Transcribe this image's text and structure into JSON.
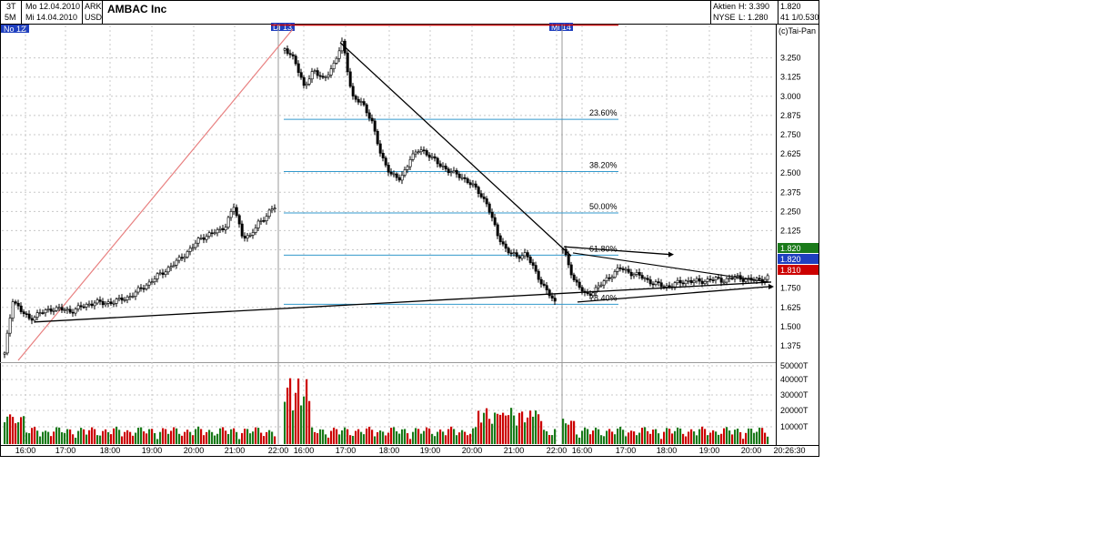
{
  "header": {
    "timeframe_top": "3T",
    "timeframe_bottom": "5M",
    "date_from": "Mo 12.04.2010",
    "date_to": "Mi 14.04.2010",
    "exchange": "ARK",
    "currency": "USD",
    "instrument": "AMBAC Inc",
    "type_label": "Aktien",
    "venue": "NYSE",
    "high": "H: 3.390",
    "low": "L: 1.280",
    "last": "1.820",
    "ratio": "41 1/0.530"
  },
  "tags": {
    "left_marker": "No 12",
    "spike_marker": "Di 13",
    "mid_marker": "Mi 14",
    "fan_label": "(c)Tai-Pan"
  },
  "colors": {
    "up": "#1a7a1a",
    "down": "#cc0000",
    "candle": "#000000",
    "fib_line": "#3399cc",
    "diag_line": "#e88080",
    "blue_tag": "#1f3fbf",
    "grid": "#c8c8c8"
  },
  "chart_data": [
    {
      "type": "candlestick",
      "title": "AMBAC Inc",
      "ylim": [
        1.28,
        3.39
      ],
      "y_ticks": [
        "3.250",
        "3.125",
        "3.000",
        "2.875",
        "2.750",
        "2.625",
        "2.500",
        "2.375",
        "2.250",
        "2.125",
        "2.000",
        "1.875",
        "1.750",
        "1.625",
        "1.500",
        "1.375"
      ],
      "x_ticks": [
        "16:00",
        "17:00",
        "18:00",
        "19:00",
        "20:00",
        "21:00",
        "22:00",
        "16:00",
        "17:00",
        "18:00",
        "19:00",
        "20:00",
        "21:00",
        "22:00",
        "16:00",
        "17:00",
        "18:00",
        "19:00",
        "20:00"
      ],
      "last_time_label": "20:26:30",
      "price_tags": [
        {
          "value": "1.820",
          "color": "#1a7a1a"
        },
        {
          "value": "1.820",
          "color": "#1f3fbf"
        },
        {
          "value": "1.810",
          "color": "#cc0000"
        }
      ],
      "fibonacci": [
        {
          "label": "23.60%",
          "value": 2.85
        },
        {
          "label": "38.20%",
          "value": 2.51
        },
        {
          "label": "50.00%",
          "value": 2.24
        },
        {
          "label": "61.80%",
          "value": 1.965
        },
        {
          "label": "78.40%",
          "value": 1.645
        }
      ],
      "session_prices": [
        [
          1.32,
          1.68,
          1.6,
          1.55,
          1.58,
          1.6,
          1.62,
          1.61,
          1.6,
          1.62,
          1.64,
          1.66,
          1.65,
          1.66,
          1.67,
          1.69,
          1.72,
          1.76,
          1.8,
          1.84,
          1.88,
          1.92,
          1.97,
          2.02,
          2.08,
          2.1,
          2.12,
          2.16,
          2.28,
          2.1,
          2.08,
          2.18,
          2.22,
          2.28
        ],
        [
          3.3,
          3.25,
          3.05,
          3.18,
          3.1,
          3.2,
          3.35,
          3.0,
          2.95,
          2.85,
          2.6,
          2.5,
          2.45,
          2.6,
          2.65,
          2.62,
          2.55,
          2.52,
          2.48,
          2.45,
          2.38,
          2.3,
          2.1,
          2.0,
          1.95,
          1.98,
          1.85,
          1.75,
          1.65
        ],
        [
          2.0,
          1.8,
          1.7,
          1.75,
          1.82,
          1.88,
          1.85,
          1.82,
          1.78,
          1.76,
          1.78,
          1.8,
          1.79,
          1.81,
          1.8,
          1.82,
          1.81,
          1.8,
          1.82
        ]
      ],
      "trendlines": [
        {
          "from_price": 1.53,
          "to_price": 1.79,
          "label": "",
          "style": "support"
        },
        {
          "from_price": 3.35,
          "to_price": 1.96,
          "label": "",
          "style": "resistance"
        },
        {
          "from_price": 2.02,
          "to_price": 1.97,
          "label": "",
          "style": "arrow"
        },
        {
          "from_price": 1.66,
          "to_price": 1.76,
          "label": "",
          "style": "arrow"
        }
      ],
      "grid": true
    },
    {
      "type": "bar",
      "title": "",
      "ylim": [
        0,
        55000
      ],
      "y_ticks": [
        "50000T",
        "40000T",
        "30000T",
        "20000T",
        "10000T"
      ],
      "colors_by_direction": true
    }
  ]
}
